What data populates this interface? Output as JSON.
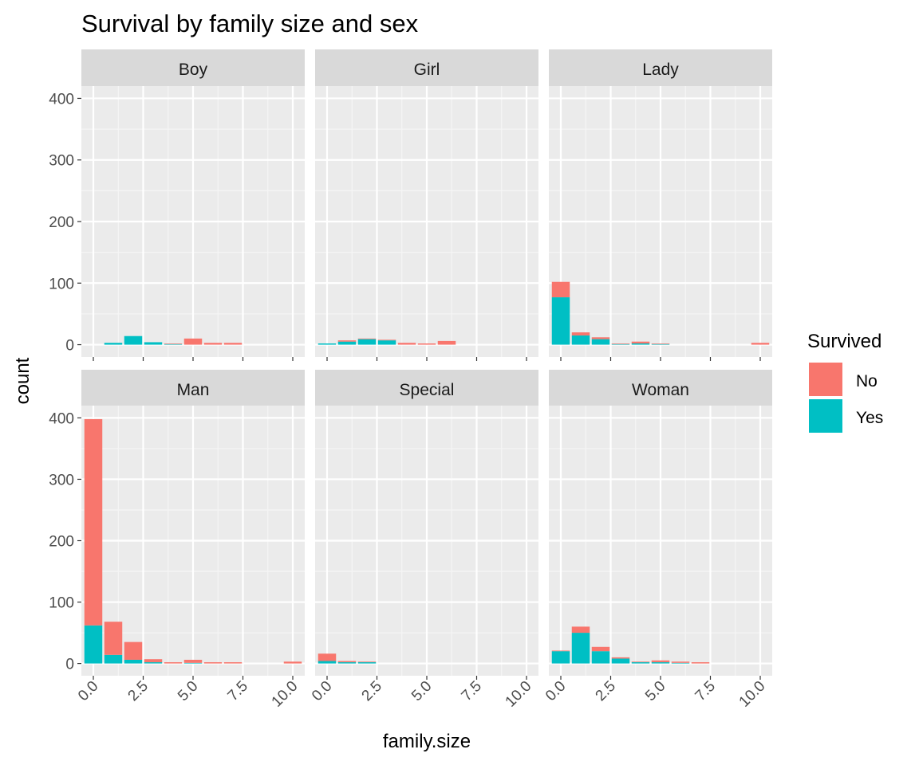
{
  "chart_data": {
    "type": "bar",
    "stacked": true,
    "title": "Survival by family size and sex",
    "xlabel": "family.size",
    "ylabel": "count",
    "xlim": [
      -0.6,
      10.6
    ],
    "ylim": [
      -20,
      420
    ],
    "x_ticks": [
      "0.0",
      "2.5",
      "5.0",
      "7.5",
      "10.0"
    ],
    "x_tick_values": [
      0,
      2.5,
      5,
      7.5,
      10
    ],
    "y_ticks": [
      "0",
      "100",
      "200",
      "300",
      "400"
    ],
    "y_tick_values": [
      0,
      100,
      200,
      300,
      400
    ],
    "grid": true,
    "legend": {
      "title": "Survived",
      "position": "right",
      "entries": [
        {
          "label": "No",
          "color": "#F8766D"
        },
        {
          "label": "Yes",
          "color": "#00BFC4"
        }
      ]
    },
    "panels": [
      {
        "name": "Boy",
        "x": [
          0,
          1,
          2,
          3,
          4,
          5,
          6,
          7
        ],
        "No": [
          0,
          0,
          0,
          0,
          1,
          10,
          3,
          3
        ],
        "Yes": [
          0,
          3,
          14,
          4,
          1,
          0,
          0,
          0
        ]
      },
      {
        "name": "Girl",
        "x": [
          0,
          1,
          2,
          3,
          4,
          5,
          6
        ],
        "No": [
          0,
          2,
          1,
          1,
          3,
          2,
          6
        ],
        "Yes": [
          2,
          5,
          9,
          7,
          0,
          0,
          0
        ]
      },
      {
        "name": "Lady",
        "x": [
          0,
          1,
          2,
          3,
          4,
          5,
          10
        ],
        "No": [
          25,
          5,
          3,
          1,
          3,
          1,
          3
        ],
        "Yes": [
          77,
          15,
          9,
          1,
          2,
          1,
          0
        ]
      },
      {
        "name": "Man",
        "x": [
          0,
          1,
          2,
          3,
          4,
          5,
          6,
          7,
          10
        ],
        "No": [
          336,
          54,
          29,
          5,
          2,
          5,
          2,
          2,
          3
        ],
        "Yes": [
          62,
          14,
          6,
          2,
          0,
          1,
          0,
          0,
          0
        ]
      },
      {
        "name": "Special",
        "x": [
          0,
          1,
          2
        ],
        "No": [
          12,
          2,
          1
        ],
        "Yes": [
          4,
          2,
          2
        ]
      },
      {
        "name": "Woman",
        "x": [
          0,
          1,
          2,
          3,
          4,
          5,
          6,
          7
        ],
        "No": [
          1,
          10,
          7,
          2,
          1,
          3,
          2,
          2
        ],
        "Yes": [
          20,
          50,
          20,
          8,
          2,
          2,
          1,
          0
        ]
      }
    ]
  }
}
